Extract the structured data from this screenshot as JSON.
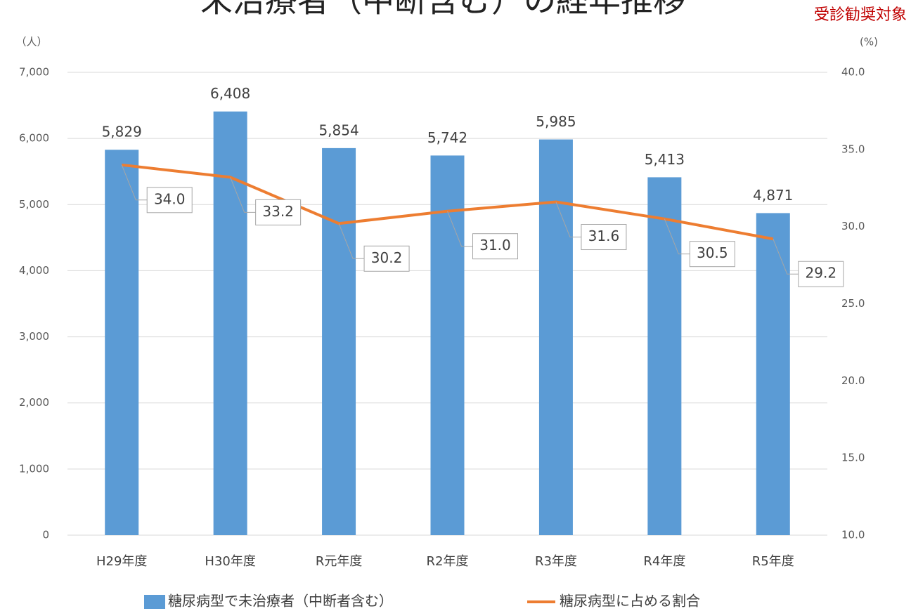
{
  "chart_data": {
    "type": "bar_line",
    "title": "未治療者（中断含む）の経年推移",
    "note": "受診勧奨対象",
    "y_label": "（人）",
    "y2_label": "(%)",
    "categories": [
      "H29年度",
      "H30年度",
      "R元年度",
      "R2年度",
      "R3年度",
      "R4年度",
      "R5年度"
    ],
    "series": [
      {
        "name": "糖尿病型で未治療者（中断者含む）",
        "type": "bar",
        "color": "#5b9bd5",
        "values": [
          5829,
          6408,
          5854,
          5742,
          5985,
          5413,
          4871
        ],
        "value_labels": [
          "5,829",
          "6,408",
          "5,854",
          "5,742",
          "5,985",
          "5,413",
          "4,871"
        ]
      },
      {
        "name": "糖尿病型に占める割合",
        "type": "line",
        "axis": "y2",
        "color": "#ed7d31",
        "values": [
          34.0,
          33.2,
          30.2,
          31.0,
          31.6,
          30.5,
          29.2
        ],
        "value_labels": [
          "34.0",
          "33.2",
          "30.2",
          "31.0",
          "31.6",
          "30.5",
          "29.2"
        ]
      }
    ],
    "ylim": [
      0,
      7000
    ],
    "yticks": [
      0,
      {
        "value": 1000,
        "label": "1,000"
      },
      {
        "value": 2000,
        "label": "2,000"
      },
      {
        "value": 3000,
        "label": "3,000"
      },
      {
        "value": 4000,
        "label": "4,000"
      },
      {
        "value": 5000,
        "label": "5,000"
      },
      {
        "value": 6000,
        "label": "6,000"
      },
      {
        "value": 7000,
        "label": "7,000"
      }
    ],
    "y2lim": [
      10,
      40
    ],
    "y2ticks": [
      {
        "value": 10,
        "label": "10.0"
      },
      {
        "value": 15,
        "label": "15.0"
      },
      {
        "value": 20,
        "label": "20.0"
      },
      {
        "value": 25,
        "label": "25.0"
      },
      {
        "value": 30,
        "label": "30.0"
      },
      {
        "value": 35,
        "label": "35.0"
      },
      {
        "value": 40,
        "label": "40.0"
      }
    ],
    "grid": true,
    "legend": "bottom"
  }
}
